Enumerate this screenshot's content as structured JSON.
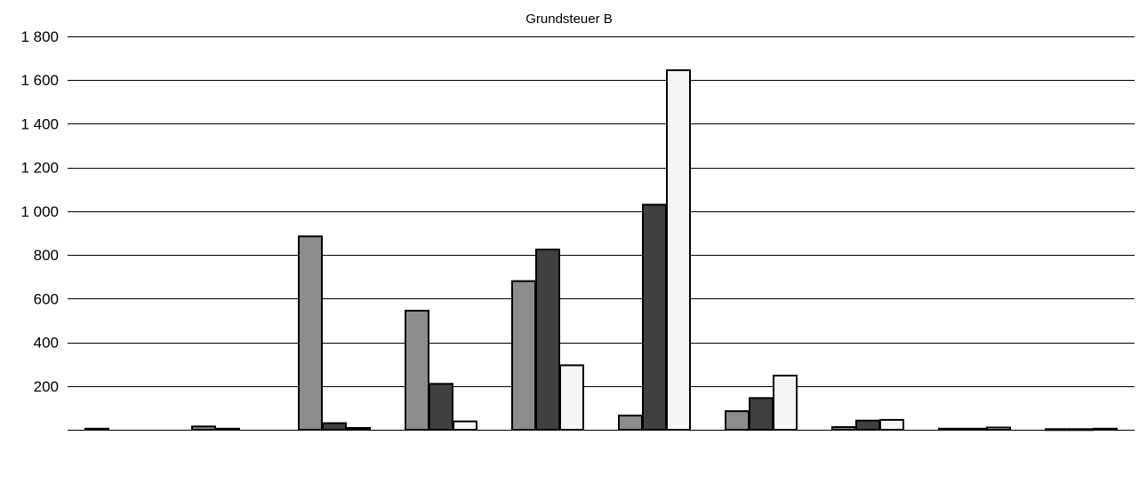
{
  "chart_data": {
    "type": "bar",
    "title": "Grundsteuer B",
    "xlabel": "",
    "ylabel": "",
    "ylim": [
      0,
      1800
    ],
    "yticks": [
      200,
      400,
      600,
      800,
      1000,
      1200,
      1400,
      1600,
      1800
    ],
    "ytick_labels": [
      "200",
      "400",
      "600",
      "800",
      "1 000",
      "1 200",
      "1 400",
      "1 600",
      "1 800"
    ],
    "grid": true,
    "categories": [
      "",
      "",
      "",
      "",
      "",
      "",
      "",
      "",
      "",
      ""
    ],
    "series": [
      {
        "color": "#8c8c8c",
        "values": [
          5,
          15,
          885,
          545,
          680,
          65,
          85,
          12,
          5,
          3
        ]
      },
      {
        "color": "#404040",
        "values": [
          0,
          5,
          30,
          210,
          825,
          1030,
          145,
          42,
          5,
          3
        ]
      },
      {
        "color": "#f5f5f5",
        "values": [
          0,
          0,
          8,
          38,
          295,
          1645,
          248,
          45,
          10,
          5
        ]
      }
    ]
  }
}
